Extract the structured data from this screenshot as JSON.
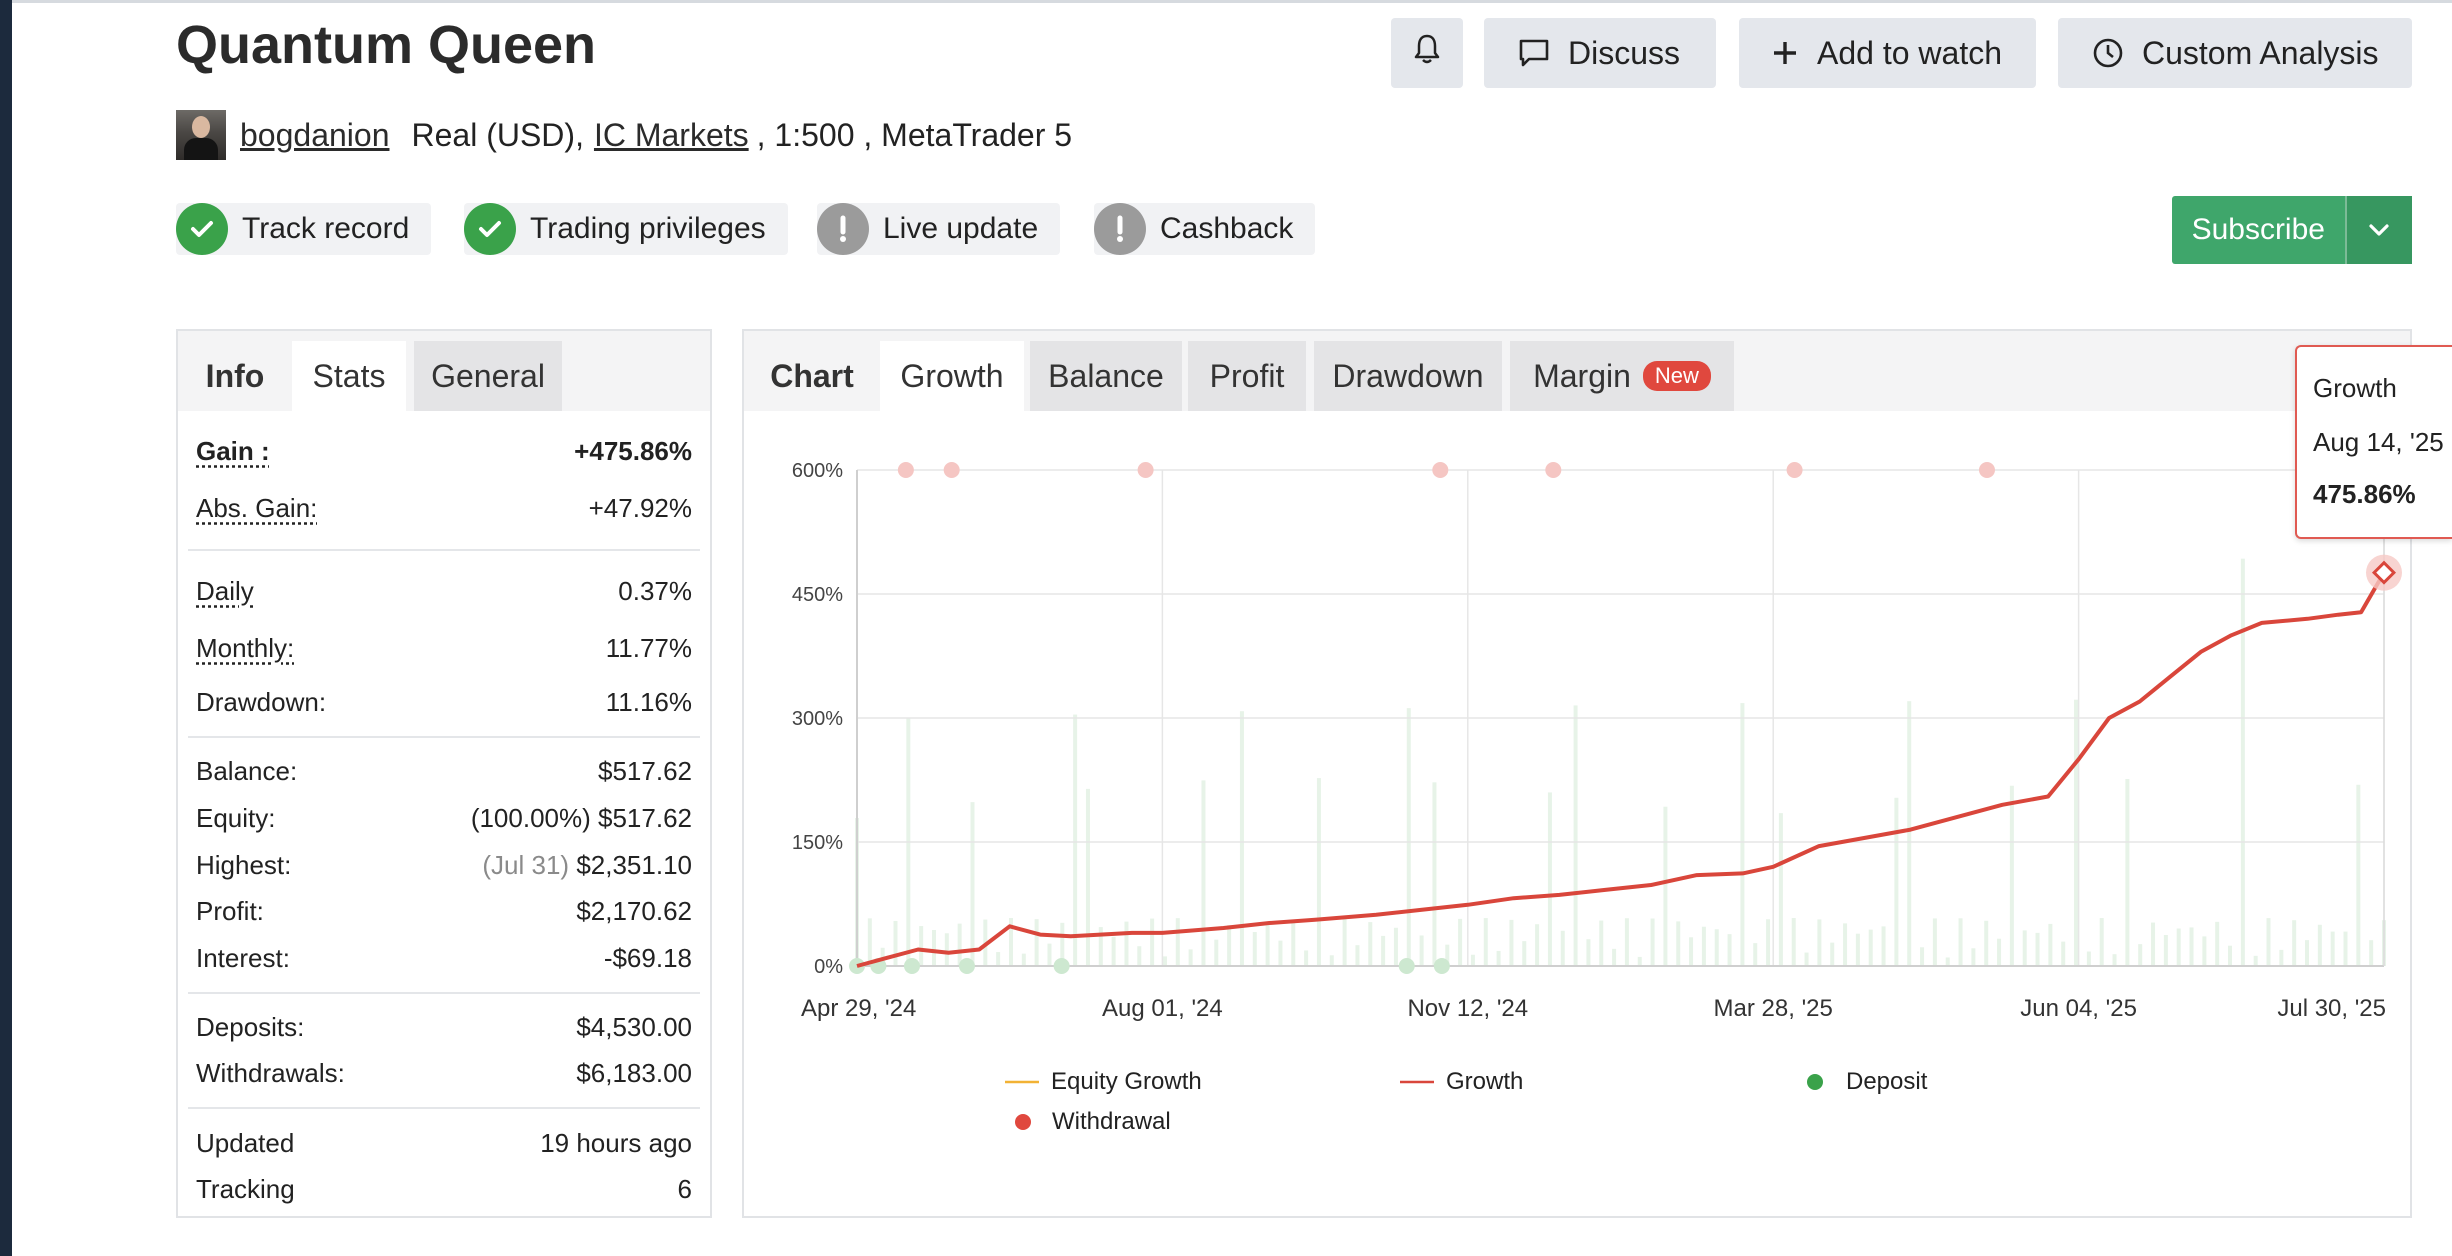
{
  "header": {
    "title": "Quantum Queen",
    "buttons": {
      "discuss": "Discuss",
      "add_watch": "Add to watch",
      "custom_analysis": "Custom Analysis"
    },
    "author": "bogdanion",
    "account_prefix": "Real (USD),",
    "broker": "IC Markets",
    "account_suffix": ", 1:500 , MetaTrader 5",
    "badges": [
      {
        "label": "Track record",
        "status": "verified"
      },
      {
        "label": "Trading privileges",
        "status": "verified"
      },
      {
        "label": "Live update",
        "status": "warning"
      },
      {
        "label": "Cashback",
        "status": "warning"
      }
    ],
    "subscribe": "Subscribe"
  },
  "stats": {
    "tabs": [
      "Info",
      "Stats",
      "General"
    ],
    "gain": {
      "label": "Gain :",
      "value": "+475.86%"
    },
    "abs_gain": {
      "label": "Abs. Gain:",
      "value": "+47.92%"
    },
    "daily": {
      "label": "Daily",
      "value": "0.37%"
    },
    "monthly": {
      "label": "Monthly:",
      "value": "11.77%"
    },
    "drawdown": {
      "label": "Drawdown:",
      "value": "11.16%"
    },
    "balance": {
      "label": "Balance:",
      "value": "$517.62"
    },
    "equity": {
      "label": "Equity:",
      "pct": "(100.00%)",
      "value": "$517.62"
    },
    "highest": {
      "label": "Highest:",
      "date": "(Jul 31)",
      "value": "$2,351.10"
    },
    "profit": {
      "label": "Profit:",
      "value": "$2,170.62"
    },
    "interest": {
      "label": "Interest:",
      "value": "-$69.18"
    },
    "deposits": {
      "label": "Deposits:",
      "value": "$4,530.00"
    },
    "withdrawals": {
      "label": "Withdrawals:",
      "value": "$6,183.00"
    },
    "updated": {
      "label": "Updated",
      "value": "19 hours ago"
    },
    "tracking": {
      "label": "Tracking",
      "value": "6"
    }
  },
  "chart_panel": {
    "tabs": [
      "Chart",
      "Growth",
      "Balance",
      "Profit",
      "Drawdown",
      "Margin"
    ],
    "new_badge": "New",
    "tooltip": {
      "series": "Growth",
      "date": "Aug 14, '25",
      "value": "475.86%"
    },
    "legend": [
      "Equity Growth",
      "Growth",
      "Deposit",
      "Withdrawal"
    ]
  },
  "colors": {
    "growth": "#d9463b",
    "deposit": "#3aa24a",
    "withdrawal": "#e0483e",
    "equity": "#f2b234",
    "subscribe": "#3fa66b"
  },
  "chart_data": {
    "type": "line",
    "y_ticks": [
      "600%",
      "450%",
      "300%",
      "150%",
      "0%"
    ],
    "x_ticks": [
      "Apr 29, '24",
      "Aug 01, '24",
      "Nov 12, '24",
      "Mar 28, '25",
      "Jun 04, '25",
      "Jul 30, '25"
    ],
    "ylim": [
      0,
      600
    ],
    "series": [
      {
        "name": "Growth",
        "points": [
          [
            0,
            0
          ],
          [
            0.02,
            10
          ],
          [
            0.04,
            20
          ],
          [
            0.06,
            16
          ],
          [
            0.08,
            20
          ],
          [
            0.1,
            48
          ],
          [
            0.12,
            38
          ],
          [
            0.14,
            36
          ],
          [
            0.18,
            40
          ],
          [
            0.2,
            40
          ],
          [
            0.24,
            46
          ],
          [
            0.27,
            52
          ],
          [
            0.3,
            56
          ],
          [
            0.34,
            62
          ],
          [
            0.37,
            68
          ],
          [
            0.4,
            74
          ],
          [
            0.43,
            82
          ],
          [
            0.46,
            86
          ],
          [
            0.49,
            92
          ],
          [
            0.52,
            98
          ],
          [
            0.55,
            110
          ],
          [
            0.58,
            112
          ],
          [
            0.6,
            120
          ],
          [
            0.63,
            145
          ],
          [
            0.66,
            155
          ],
          [
            0.69,
            165
          ],
          [
            0.72,
            180
          ],
          [
            0.75,
            195
          ],
          [
            0.78,
            205
          ],
          [
            0.8,
            250
          ],
          [
            0.82,
            300
          ],
          [
            0.84,
            320
          ],
          [
            0.86,
            350
          ],
          [
            0.88,
            380
          ],
          [
            0.9,
            400
          ],
          [
            0.92,
            415
          ],
          [
            0.95,
            420
          ],
          [
            0.97,
            425
          ],
          [
            0.985,
            428
          ],
          [
            1.0,
            475.86
          ]
        ]
      }
    ],
    "withdrawal_markers_x": [
      0.032,
      0.062,
      0.189,
      0.382,
      0.456,
      0.614,
      0.74
    ],
    "deposit_markers_x": [
      0.0,
      0.014,
      0.036,
      0.072,
      0.134,
      0.36,
      0.383
    ]
  }
}
